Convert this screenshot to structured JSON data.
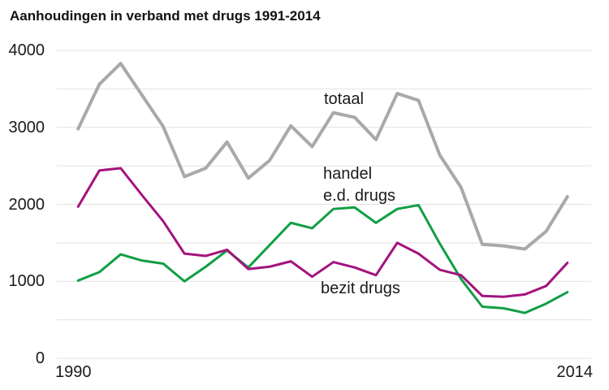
{
  "chart_data": {
    "type": "line",
    "title": "Aanhoudingen in verband met drugs 1991-2014",
    "ylim": [
      0,
      4000
    ],
    "xlim": [
      1990,
      2015
    ],
    "yticks": [
      0,
      1000,
      2000,
      3000,
      4000
    ],
    "ytick_labels": [
      "0",
      "1000",
      "2000",
      "3000",
      "4000"
    ],
    "xtick_labels": [
      "1990",
      "2014"
    ],
    "grid": "horizontal",
    "grid_step": 500,
    "grid_color": "#e2e2e2",
    "legend_position": "inline-labels-next-to-lines",
    "years": [
      1991,
      1992,
      1993,
      1994,
      1995,
      1996,
      1997,
      1998,
      1999,
      2000,
      2001,
      2002,
      2003,
      2004,
      2005,
      2006,
      2007,
      2008,
      2009,
      2010,
      2011,
      2012,
      2013,
      2014
    ],
    "series": [
      {
        "name": "totaal",
        "color": "#a9a9a9",
        "stroke_width": 4,
        "values": [
          2980,
          3560,
          3830,
          3420,
          3010,
          2360,
          2470,
          2810,
          2340,
          2570,
          3020,
          2750,
          3190,
          3130,
          2840,
          3440,
          3350,
          2640,
          2220,
          1480,
          1460,
          1420,
          1650,
          2100
        ]
      },
      {
        "name": "handel e.d. drugs",
        "color": "#119e45",
        "stroke_width": 3,
        "values": [
          1010,
          1120,
          1350,
          1270,
          1230,
          1000,
          1190,
          1400,
          1180,
          1470,
          1760,
          1690,
          1940,
          1960,
          1760,
          1940,
          1990,
          1490,
          1030,
          670,
          650,
          590,
          710,
          860
        ]
      },
      {
        "name": "bezit drugs",
        "color": "#a4137e",
        "stroke_width": 3,
        "values": [
          1970,
          2440,
          2470,
          2120,
          1780,
          1360,
          1330,
          1410,
          1160,
          1190,
          1260,
          1060,
          1250,
          1180,
          1080,
          1500,
          1360,
          1150,
          1080,
          810,
          800,
          830,
          940,
          1240
        ]
      }
    ],
    "series_labels": {
      "totaal": "totaal",
      "handel_line1": "handel",
      "handel_line2": "e.d. drugs",
      "bezit": "bezit drugs"
    }
  }
}
